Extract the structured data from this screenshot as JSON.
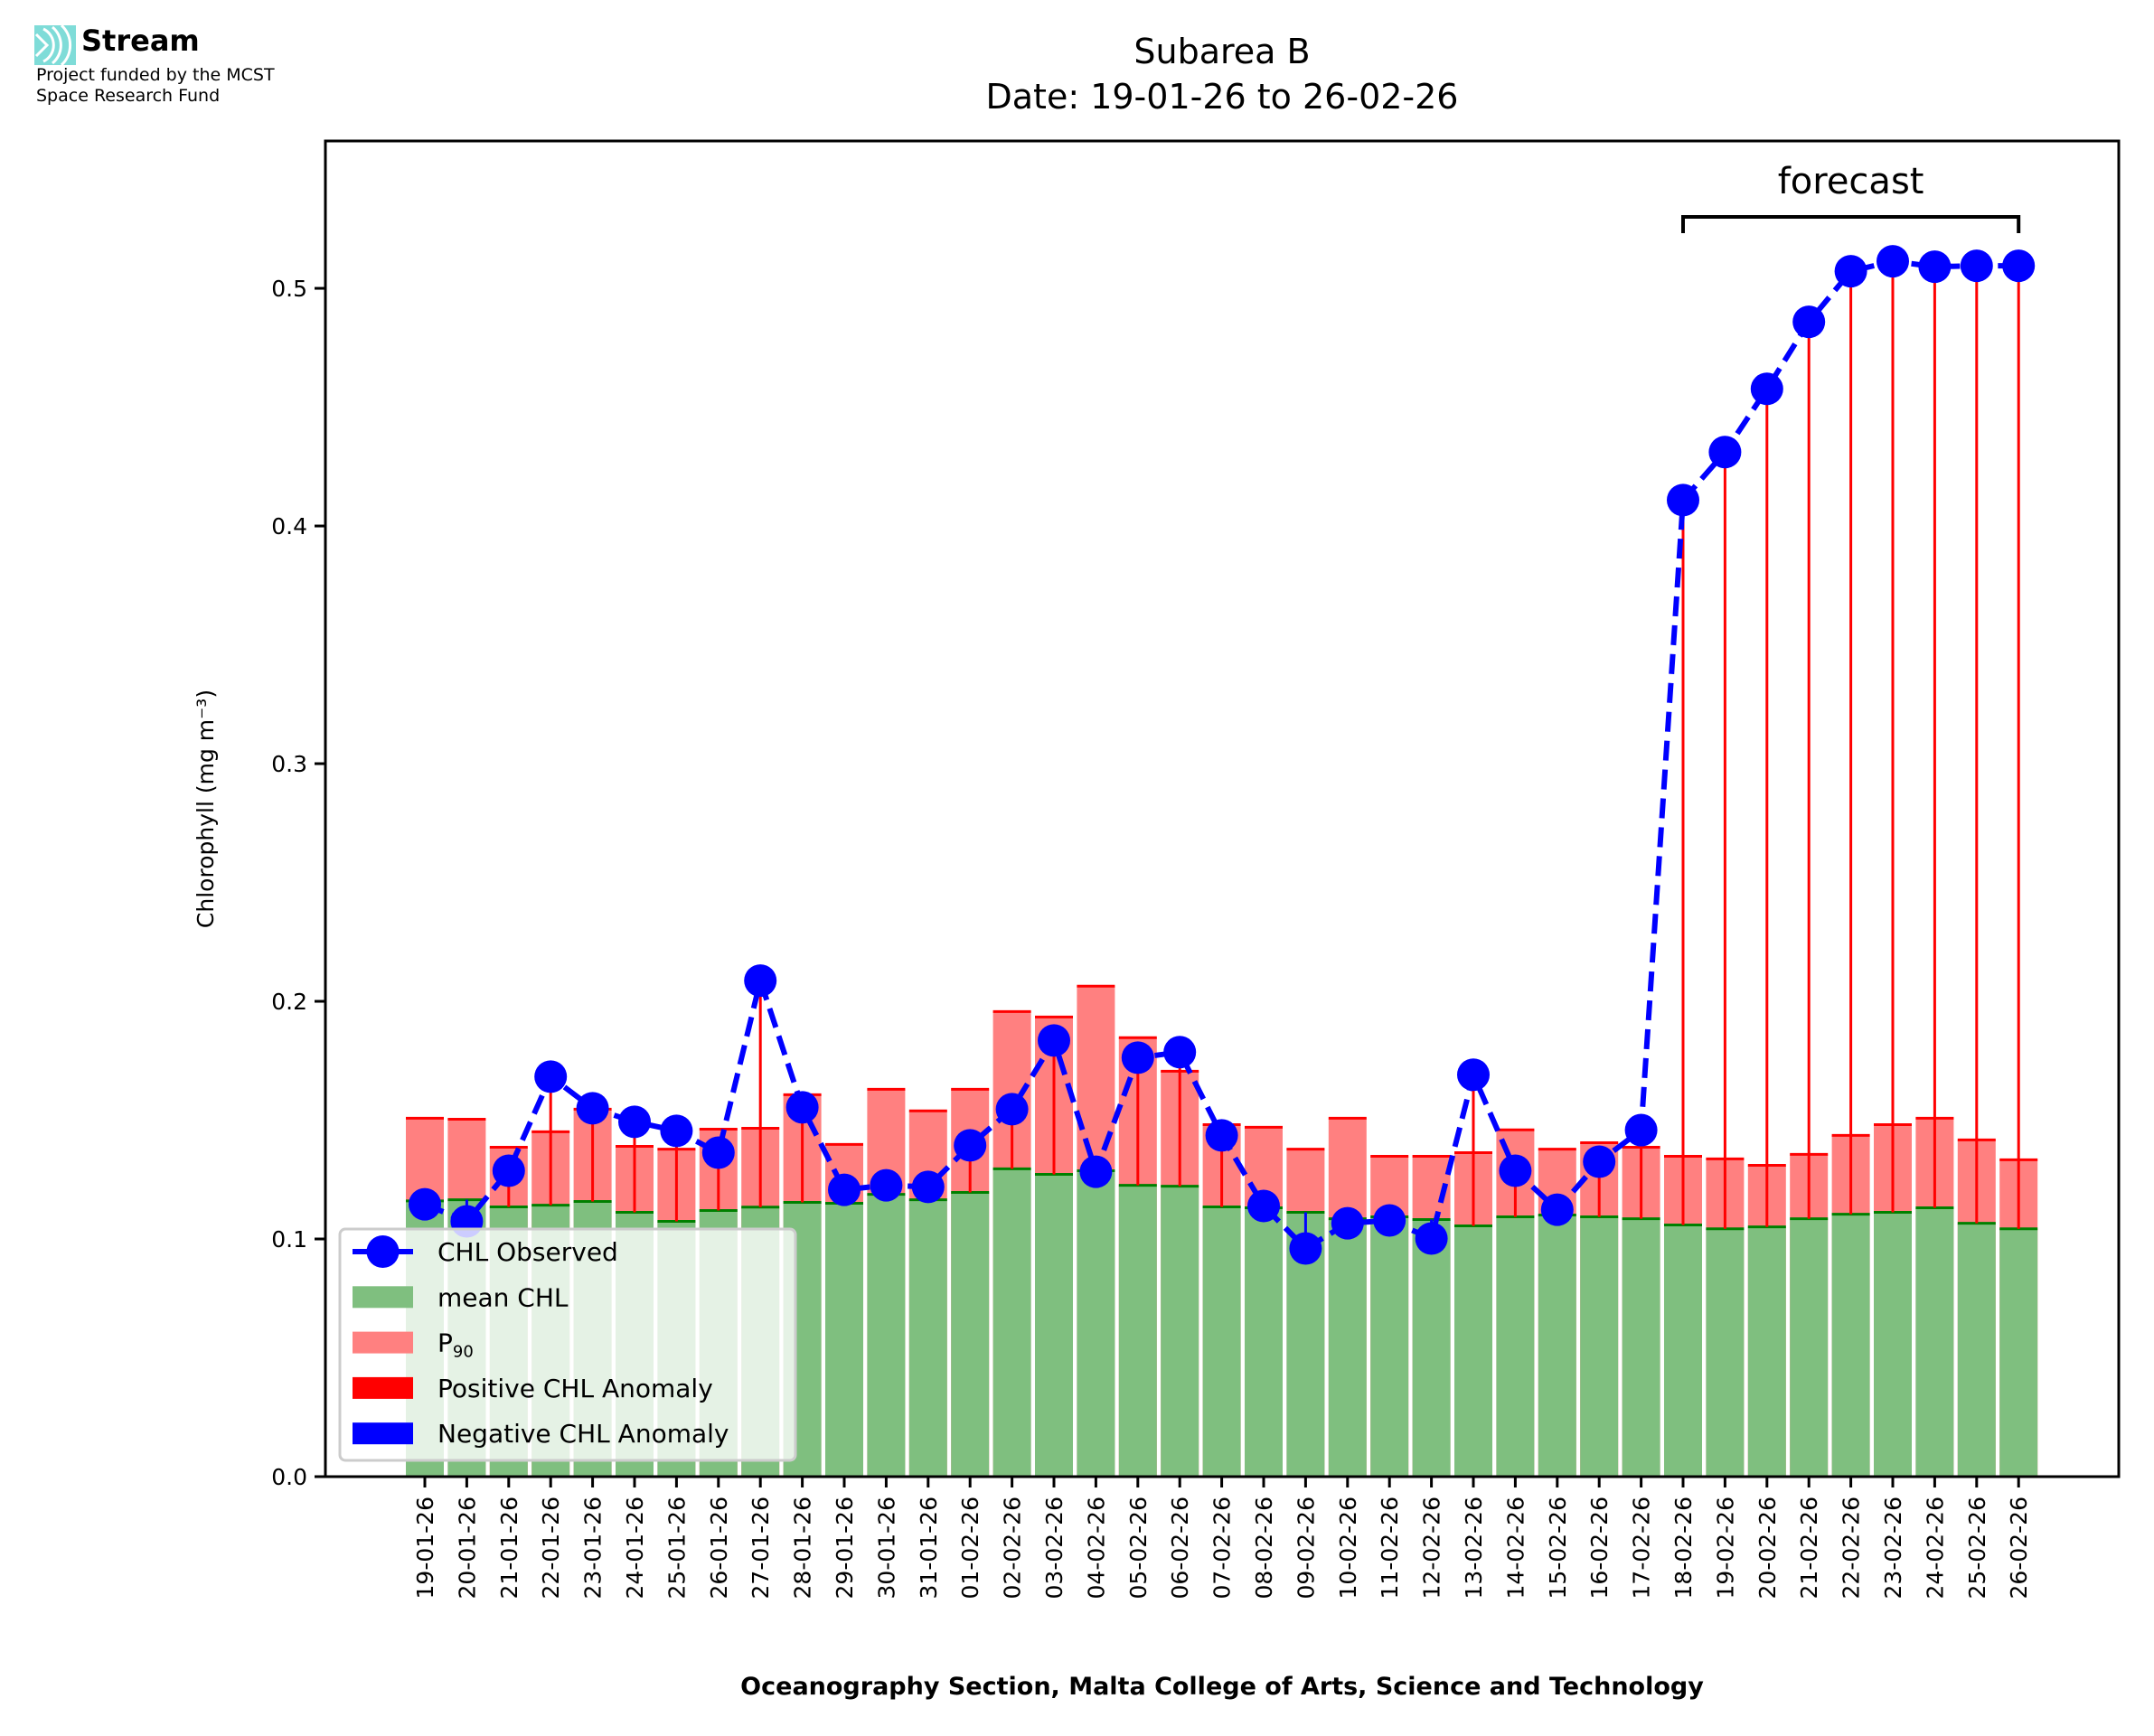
{
  "branding": {
    "name": "Stream",
    "funding_line1": "Project funded by the MCST",
    "funding_line2": "Space Research Fund",
    "logo_color": "#7fdcd8"
  },
  "chart_data": {
    "type": "bar",
    "title": "Subarea B",
    "subtitle": "Date: 19-01-26 to 26-02-26",
    "xlabel": "Oceanography Section, Malta College of Arts, Science and Technology",
    "ylabel": "Chlorophyll (mg m⁻³)",
    "ylim": [
      0.0,
      0.562
    ],
    "yticks": [
      0.0,
      0.1,
      0.2,
      0.3,
      0.4,
      0.5
    ],
    "ytick_labels": [
      "0.0",
      "0.1",
      "0.2",
      "0.3",
      "0.4",
      "0.5"
    ],
    "grid": false,
    "legend_position": "lower-left",
    "categories": [
      "19-01-26",
      "20-01-26",
      "21-01-26",
      "22-01-26",
      "23-01-26",
      "24-01-26",
      "25-01-26",
      "26-01-26",
      "27-01-26",
      "28-01-26",
      "29-01-26",
      "30-01-26",
      "31-01-26",
      "01-02-26",
      "02-02-26",
      "03-02-26",
      "04-02-26",
      "05-02-26",
      "06-02-26",
      "07-02-26",
      "08-02-26",
      "09-02-26",
      "10-02-26",
      "11-02-26",
      "12-02-26",
      "13-02-26",
      "14-02-26",
      "15-02-26",
      "16-02-26",
      "17-02-26",
      "18-02-26",
      "19-02-26",
      "20-02-26",
      "21-02-26",
      "22-02-26",
      "23-02-26",
      "24-02-26",
      "25-02-26",
      "26-02-26"
    ],
    "series": [
      {
        "name": "mean CHL",
        "kind": "bar",
        "color": "#7fbf7f",
        "edge_color": "#008000",
        "values": [
          0.116,
          0.1165,
          0.1135,
          0.1142,
          0.1158,
          0.1112,
          0.1074,
          0.112,
          0.1134,
          0.1154,
          0.115,
          0.1188,
          0.1165,
          0.1196,
          0.1295,
          0.1272,
          0.1287,
          0.1226,
          0.1222,
          0.1135,
          0.1131,
          0.1112,
          0.1085,
          0.1093,
          0.1082,
          0.1055,
          0.1093,
          0.1101,
          0.1093,
          0.1085,
          0.1059,
          0.1043,
          0.1051,
          0.1085,
          0.1104,
          0.1112,
          0.1131,
          0.1066,
          0.1043
        ]
      },
      {
        "name": "P90",
        "kind": "bar",
        "color": "#ff8080",
        "edge_color": "#ff0000",
        "values": [
          0.1508,
          0.1504,
          0.1386,
          0.1451,
          0.1546,
          0.139,
          0.1378,
          0.1462,
          0.1466,
          0.1607,
          0.1398,
          0.163,
          0.1539,
          0.163,
          0.1957,
          0.1934,
          0.2064,
          0.1847,
          0.1706,
          0.1481,
          0.147,
          0.1378,
          0.1508,
          0.1348,
          0.1348,
          0.1363,
          0.1459,
          0.1378,
          0.1405,
          0.1386,
          0.1348,
          0.1337,
          0.131,
          0.1356,
          0.1436,
          0.1481,
          0.1508,
          0.1417,
          0.1333
        ]
      },
      {
        "name": "CHL Observed",
        "kind": "line",
        "color": "#0000ff",
        "linestyle": "dashed",
        "marker": "circle",
        "values": [
          0.1146,
          0.1074,
          0.1287,
          0.1683,
          0.155,
          0.1493,
          0.1455,
          0.1363,
          0.2087,
          0.1554,
          0.1207,
          0.1226,
          0.1219,
          0.1394,
          0.1546,
          0.1835,
          0.1283,
          0.1763,
          0.1786,
          0.1436,
          0.1139,
          0.096,
          0.1066,
          0.1078,
          0.1002,
          0.1691,
          0.1287,
          0.1123,
          0.1325,
          0.1458,
          0.4109,
          0.4311,
          0.4577,
          0.4859,
          0.5072,
          0.5114,
          0.5091,
          0.5095,
          0.5095
        ]
      }
    ],
    "anomaly_colors": {
      "positive": "#ff0000",
      "negative": "#0000ff"
    },
    "legend": [
      {
        "label": "CHL Observed",
        "type": "line-marker",
        "color": "#0000ff"
      },
      {
        "label": "mean CHL",
        "type": "patch",
        "color": "#7fbf7f"
      },
      {
        "label": "P",
        "label_sub": "90",
        "type": "patch",
        "color": "#ff8080"
      },
      {
        "label": "Positive CHL Anomaly",
        "type": "patch",
        "color": "#ff0000"
      },
      {
        "label": "Negative CHL Anomaly",
        "type": "patch",
        "color": "#0000ff"
      }
    ],
    "annotation": {
      "text": "forecast",
      "start_category": "18-02-26",
      "end_category": "26-02-26"
    }
  }
}
